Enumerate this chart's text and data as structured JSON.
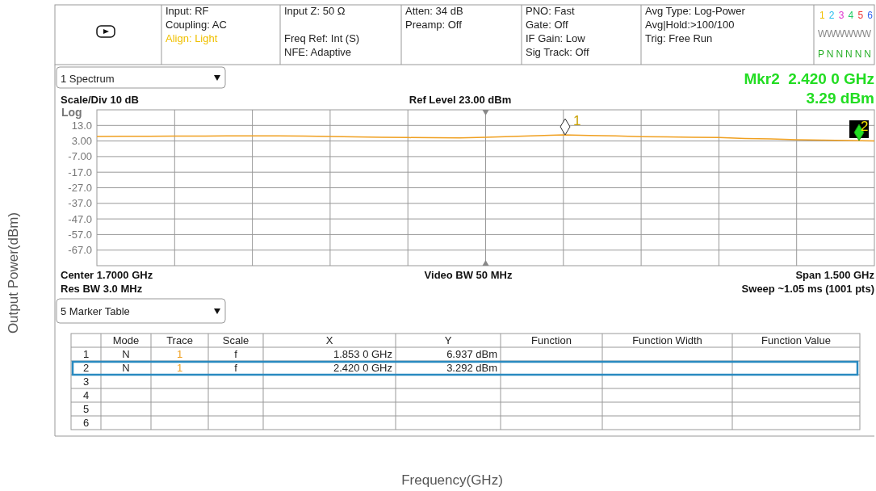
{
  "chart_data": {
    "type": "line",
    "ylabel": "Output Power(dBm)",
    "categories": [
      null,
      null,
      null,
      null,
      null,
      null,
      null,
      null,
      null,
      null,
      null,
      null,
      null,
      null,
      null,
      null,
      null,
      null,
      null,
      null,
      null,
      null,
      null,
      null,
      null,
      null,
      null,
      null,
      null,
      null,
      null
    ],
    "series": [
      {
        "color": "#f0a020",
        "values": [
          5.9,
          6.0,
          6.0,
          6.1,
          6.2,
          6.3,
          6.3,
          6.3,
          6.1,
          5.9,
          5.6,
          5.4,
          5.2,
          5.1,
          5.0,
          5.4,
          5.9,
          6.4,
          6.9,
          6.6,
          6.3,
          5.8,
          5.6,
          5.4,
          5.2,
          4.6,
          4.3,
          3.8,
          3.6,
          3.3,
          3.0
        ]
      }
    ],
    "ylim": [
      -77,
      23
    ],
    "yticks": [
      {
        "value": 13,
        "label": "13.0"
      },
      {
        "value": 3,
        "label": "3.00"
      },
      {
        "value": -7,
        "label": "-7.00"
      },
      {
        "value": -17,
        "label": "-17.0"
      },
      {
        "value": -27,
        "label": "-27.0"
      },
      {
        "value": -37,
        "label": "-37.0"
      },
      {
        "value": -47,
        "label": "-47.0"
      },
      {
        "value": -57,
        "label": "-57.0"
      },
      {
        "value": -67,
        "label": "-67.0"
      }
    ],
    "tick_labels": "y",
    "grid": true,
    "marker": "none",
    "line_style": "solid",
    "annotations": [
      "Input: RF",
      "Coupling: AC",
      "Align: Light",
      "Input Z: 50 Ω",
      "Freq Ref: Int (S)",
      "NFE: Adaptive",
      "Atten: 34 dB",
      "Preamp: Off",
      "PNO: Fast",
      "Gate: Off",
      "IF Gain: Low",
      "Sig Track: Off",
      "Avg Type: Log-Power",
      "Avg|Hold:>100/100",
      "Trig: Free Run",
      "1 2 3 4 5 6",
      "W W W W W W",
      "P N N N N N",
      "1 Spectrum",
      "Mkr2  2.420 0 GHz",
      "3.29 dBm",
      "Scale/Div 10 dB",
      "Ref Level 23.00 dBm",
      "Log",
      "Center 1.7000 GHz",
      "Video BW 50 MHz",
      "Span 1.500 GHz",
      "Res BW 3.0 MHz",
      "Sweep ~1.05 ms (1001 pts)",
      "5 Marker Table",
      "Mode",
      "Trace",
      "Scale",
      "X",
      "Y",
      "Function",
      "Function Width",
      "Function Value",
      "1",
      "2",
      "3",
      "4",
      "5",
      "6",
      "N",
      "1",
      "f",
      "1.853 0 GHz",
      "6.937 dBm",
      "N",
      "1",
      "f",
      "2.420 0 GHz",
      "3.292 dBm",
      "1",
      "2",
      "Frequency(GHz)"
    ]
  }
}
